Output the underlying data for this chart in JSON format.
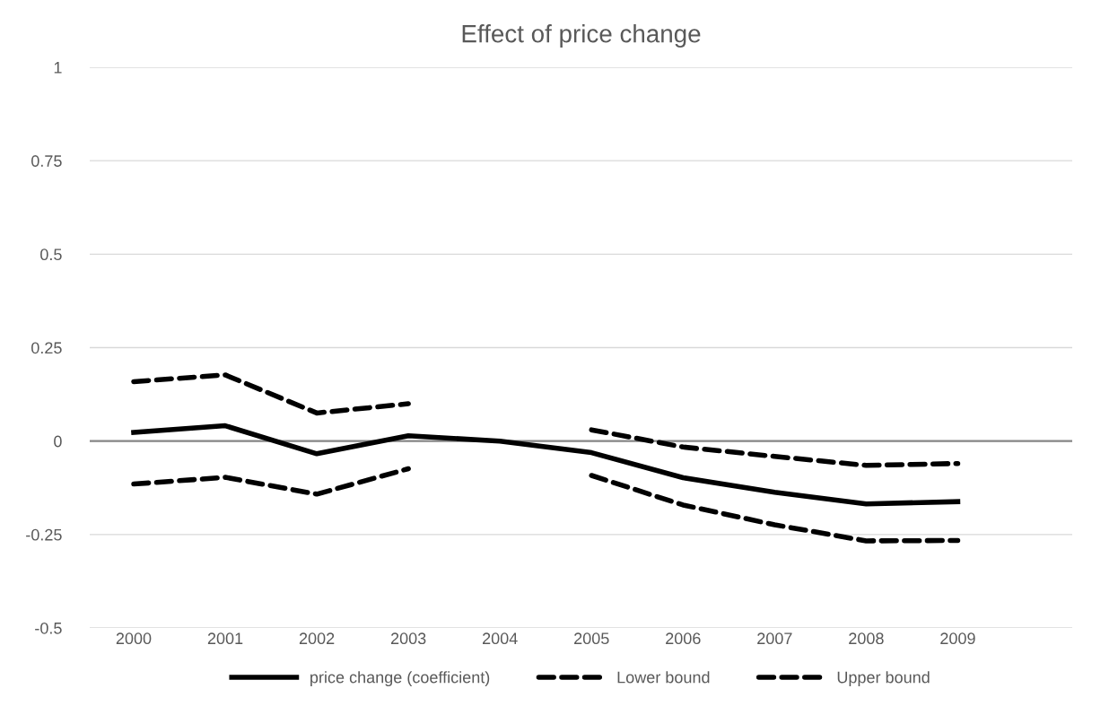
{
  "chart_data": {
    "type": "line",
    "title": "Effect of price change",
    "categories": [
      "2000",
      "2001",
      "2002",
      "2003",
      "2004",
      "2005",
      "2006",
      "2007",
      "2008",
      "2009",
      null
    ],
    "series": [
      {
        "name": "price change (coefficient)",
        "color": "#000000",
        "line_style": "solid",
        "values": [
          0.023,
          0.041,
          -0.034,
          0.014,
          0.0,
          -0.031,
          -0.098,
          -0.137,
          -0.168,
          -0.162,
          null
        ]
      },
      {
        "name": "Lower bound",
        "color": "#000000",
        "line_style": "dashed",
        "values": [
          -0.115,
          -0.097,
          -0.142,
          -0.074,
          null,
          -0.092,
          -0.171,
          -0.224,
          -0.267,
          -0.266,
          null
        ]
      },
      {
        "name": "Upper bound",
        "color": "#000000",
        "line_style": "dashed",
        "values": [
          0.159,
          0.177,
          0.075,
          0.1,
          null,
          0.03,
          -0.016,
          -0.041,
          -0.065,
          -0.06,
          null
        ]
      }
    ],
    "ylim": [
      -0.5,
      1
    ],
    "yticks": [
      -0.5,
      -0.25,
      0,
      0.25,
      0.5,
      0.75,
      1
    ],
    "grid": "y",
    "legend": "bottom",
    "marker": "none"
  }
}
